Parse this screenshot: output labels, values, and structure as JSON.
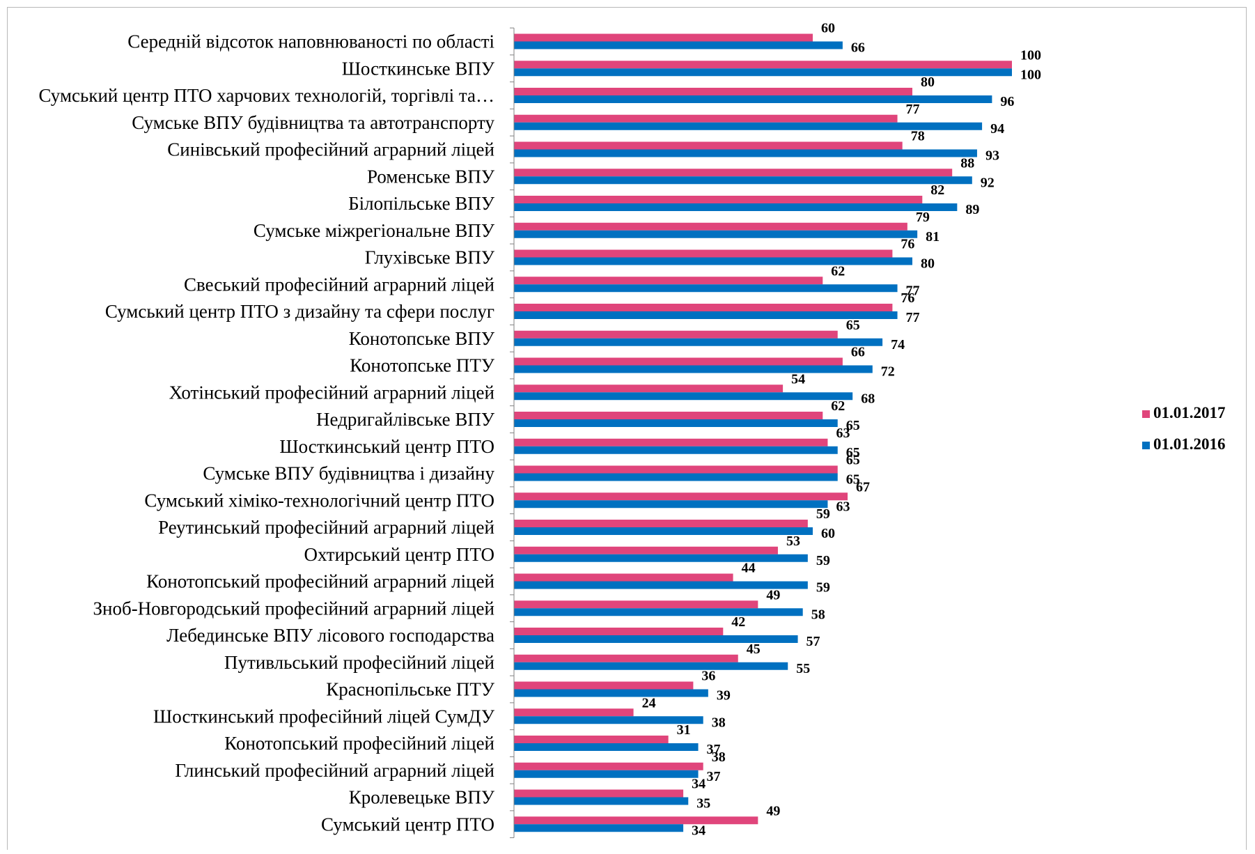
{
  "chart_data": {
    "type": "bar",
    "orientation": "horizontal",
    "title": "",
    "xlabel": "",
    "ylabel": "",
    "xlim": [
      0,
      100
    ],
    "grid": false,
    "legend_position": "right",
    "categories": [
      "Середній відсоток наповнюваності по області",
      "Шосткинське ВПУ",
      "Сумський центр ПТО харчових технологій, торгівлі та…",
      "Сумське ВПУ будівництва та автотранспорту",
      "Синівський професійний аграрний ліцей",
      "Роменське ВПУ",
      "Білопільське ВПУ",
      "Сумське міжрегіональне ВПУ",
      "Глухівське ВПУ",
      "Свеський професійний аграрний ліцей",
      "Сумський центр ПТО з дизайну та сфери послуг",
      "Конотопське ВПУ",
      "Конотопське ПТУ",
      "Хотінський професійний аграрний ліцей",
      "Недригайлівське ВПУ",
      "Шосткинський центр ПТО",
      "Сумське ВПУ будівництва і дизайну",
      "Сумський хіміко-технологічний центр ПТО",
      "Реутинський професійний аграрний ліцей",
      "Охтирський центр ПТО",
      "Конотопський професійний аграрний ліцей",
      "Зноб-Новгородський професійний аграрний ліцей",
      "Лебединське ВПУ лісового господарства",
      "Путивльський професійний ліцей",
      "Краснопільське ПТУ",
      "Шосткинський професійний ліцей СумДУ",
      "Конотопський професійний ліцей",
      "Глинський професійний аграрний ліцей",
      "Кролевецьке ВПУ",
      "Сумський центр ПТО"
    ],
    "series": [
      {
        "name": "01.01.2017",
        "color": "#e0457b",
        "values": [
          60,
          100,
          80,
          77,
          78,
          88,
          82,
          79,
          76,
          62,
          76,
          65,
          66,
          54,
          62,
          63,
          65,
          67,
          59,
          53,
          44,
          49,
          42,
          45,
          36,
          24,
          31,
          38,
          34,
          49
        ]
      },
      {
        "name": "01.01.2016",
        "color": "#0070c0",
        "values": [
          66,
          100,
          96,
          94,
          93,
          92,
          89,
          81,
          80,
          77,
          77,
          74,
          72,
          68,
          65,
          65,
          65,
          63,
          60,
          59,
          59,
          58,
          57,
          55,
          39,
          38,
          37,
          37,
          35,
          34
        ]
      }
    ]
  }
}
